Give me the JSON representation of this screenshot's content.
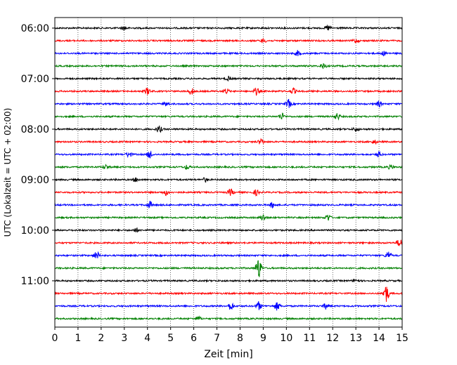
{
  "chart_data": {
    "type": "line",
    "title": "",
    "xlabel": "Zeit  [min]",
    "ylabel": "UTC (Lokalzeit = UTC + 02:00)",
    "xlim": [
      0,
      15
    ],
    "x_ticks": [
      "0",
      "1",
      "2",
      "3",
      "4",
      "5",
      "6",
      "7",
      "8",
      "9",
      "10",
      "11",
      "12",
      "13",
      "14",
      "15"
    ],
    "y_ticks": [
      "06:00",
      "07:00",
      "08:00",
      "09:00",
      "10:00",
      "11:00"
    ],
    "grid": "vertical dotted",
    "row_interval_min": 15,
    "trace_colors": [
      "#000000",
      "#ff0000",
      "#0000ff",
      "#008000"
    ],
    "rows": [
      {
        "time": "06:00",
        "color": "#000000",
        "events": [
          [
            3.0,
            0.3
          ],
          [
            11.8,
            0.4
          ]
        ]
      },
      {
        "time": "06:15",
        "color": "#ff0000",
        "events": [
          [
            9.0,
            0.3
          ],
          [
            13.0,
            0.3
          ]
        ]
      },
      {
        "time": "06:30",
        "color": "#0000ff",
        "events": [
          [
            10.5,
            0.4
          ],
          [
            14.2,
            0.3
          ]
        ]
      },
      {
        "time": "06:45",
        "color": "#008000",
        "events": [
          [
            11.6,
            0.4
          ]
        ]
      },
      {
        "time": "07:00",
        "color": "#000000",
        "events": [
          [
            7.5,
            0.3
          ]
        ]
      },
      {
        "time": "07:15",
        "color": "#ff0000",
        "events": [
          [
            4.0,
            0.5
          ],
          [
            5.9,
            0.5
          ],
          [
            7.4,
            0.4
          ],
          [
            8.7,
            0.5
          ],
          [
            10.3,
            0.4
          ]
        ]
      },
      {
        "time": "07:30",
        "color": "#0000ff",
        "events": [
          [
            4.8,
            0.3
          ],
          [
            10.1,
            0.6
          ],
          [
            14.0,
            0.4
          ]
        ]
      },
      {
        "time": "07:45",
        "color": "#008000",
        "events": [
          [
            9.8,
            0.5
          ],
          [
            12.2,
            0.5
          ]
        ]
      },
      {
        "time": "08:00",
        "color": "#000000",
        "events": [
          [
            4.5,
            0.5
          ],
          [
            13.0,
            0.3
          ]
        ]
      },
      {
        "time": "08:15",
        "color": "#ff0000",
        "events": [
          [
            8.9,
            0.4
          ],
          [
            13.8,
            0.3
          ]
        ]
      },
      {
        "time": "08:30",
        "color": "#0000ff",
        "events": [
          [
            3.2,
            0.4
          ],
          [
            4.1,
            0.6
          ],
          [
            14.0,
            0.4
          ]
        ]
      },
      {
        "time": "08:45",
        "color": "#008000",
        "events": [
          [
            2.2,
            0.3
          ],
          [
            5.7,
            0.3
          ],
          [
            14.5,
            0.3
          ]
        ]
      },
      {
        "time": "09:00",
        "color": "#000000",
        "events": [
          [
            3.5,
            0.3
          ],
          [
            6.5,
            0.3
          ]
        ]
      },
      {
        "time": "09:15",
        "color": "#ff0000",
        "events": [
          [
            4.8,
            0.4
          ],
          [
            7.6,
            0.5
          ],
          [
            8.7,
            0.4
          ]
        ]
      },
      {
        "time": "09:30",
        "color": "#0000ff",
        "events": [
          [
            4.1,
            0.5
          ],
          [
            9.4,
            0.4
          ]
        ]
      },
      {
        "time": "09:45",
        "color": "#008000",
        "events": [
          [
            9.0,
            0.5
          ],
          [
            11.8,
            0.5
          ]
        ]
      },
      {
        "time": "10:00",
        "color": "#000000",
        "events": [
          [
            3.5,
            0.3
          ]
        ]
      },
      {
        "time": "10:15",
        "color": "#ff0000",
        "events": [
          [
            14.9,
            0.6
          ]
        ]
      },
      {
        "time": "10:30",
        "color": "#0000ff",
        "events": [
          [
            1.8,
            0.6
          ],
          [
            14.4,
            0.6
          ]
        ]
      },
      {
        "time": "10:45",
        "color": "#008000",
        "events": [
          [
            8.8,
            1.6
          ]
        ]
      },
      {
        "time": "11:00",
        "color": "#000000",
        "events": [
          [
            13.0,
            0.3
          ]
        ]
      },
      {
        "time": "11:15",
        "color": "#ff0000",
        "events": [
          [
            14.3,
            1.4
          ]
        ]
      },
      {
        "time": "11:30",
        "color": "#0000ff",
        "events": [
          [
            7.6,
            0.6
          ],
          [
            8.8,
            0.6
          ],
          [
            9.6,
            0.6
          ],
          [
            11.7,
            0.4
          ]
        ]
      },
      {
        "time": "11:45",
        "color": "#008000",
        "events": [
          [
            6.2,
            0.3
          ]
        ]
      }
    ]
  }
}
